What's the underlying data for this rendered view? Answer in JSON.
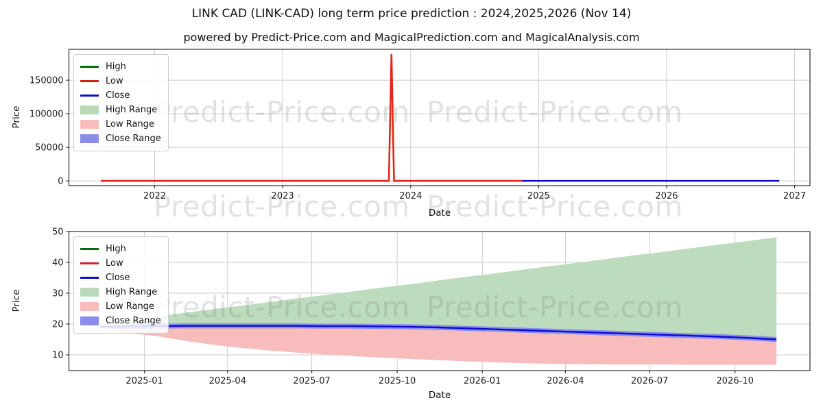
{
  "title": "LINK CAD (LINK-CAD) long term price prediction : 2024,2025,2026 (Nov 14)",
  "subtitle": "powered by Predict-Price.com and MagicalPrediction.com and MagicalAnalysis.com",
  "watermark": {
    "text": "Predict-Price.com"
  },
  "axes_labels": {
    "price": "Price",
    "date": "Date"
  },
  "colors": {
    "high_line": "#0a6b0a",
    "low_line": "#e42618",
    "close_line": "#0b0bd0",
    "high_range_fill": "#bddbbd",
    "low_range_fill": "#f9bcbc",
    "close_range_fill": "#8a8deb",
    "grid": "#cbcbcb",
    "spine": "#2b2b2b"
  },
  "legend_items": [
    {
      "label": "High",
      "type": "line",
      "color": "#0a6b0a"
    },
    {
      "label": "Low",
      "type": "line",
      "color": "#cc2222"
    },
    {
      "label": "Close",
      "type": "line",
      "color": "#0b0bd0"
    },
    {
      "label": "High Range",
      "type": "patch",
      "color": "#b9d9b9"
    },
    {
      "label": "Low Range",
      "type": "patch",
      "color": "#f9bcbc"
    },
    {
      "label": "Close Range",
      "type": "patch",
      "color": "#8a8deb"
    }
  ],
  "chart_data": [
    {
      "id": "history-chart",
      "type": "line",
      "title": "LINK-CAD price history and long term prediction",
      "xlabel": "Date",
      "ylabel": "Price",
      "x_unit": "year",
      "xlim": [
        2021.33,
        2027.12
      ],
      "ylim": [
        -7000,
        196000
      ],
      "grid": true,
      "legend_position": "upper left",
      "xticks": [
        {
          "v": 2022,
          "label": "2022"
        },
        {
          "v": 2023,
          "label": "2023"
        },
        {
          "v": 2024,
          "label": "2024"
        },
        {
          "v": 2025,
          "label": "2025"
        },
        {
          "v": 2026,
          "label": "2026"
        },
        {
          "v": 2027,
          "label": "2027"
        }
      ],
      "yticks": [
        {
          "v": 0,
          "label": "0"
        },
        {
          "v": 50000,
          "label": "50000"
        },
        {
          "v": 100000,
          "label": "100000"
        },
        {
          "v": 150000,
          "label": "150000"
        }
      ],
      "series": [
        {
          "name": "Low",
          "color": "#e42618",
          "width": 2.6,
          "note": "historical low price, flat near 0 at this scale, anomalous spike ~188000 near Nov 2023",
          "points": [
            [
              2021.58,
              28
            ],
            [
              2021.8,
              30
            ],
            [
              2022.0,
              22
            ],
            [
              2022.3,
              13
            ],
            [
              2022.6,
              8
            ],
            [
              2023.0,
              7
            ],
            [
              2023.4,
              8
            ],
            [
              2023.83,
              14
            ],
            [
              2023.85,
              188000
            ],
            [
              2023.87,
              14
            ],
            [
              2024.1,
              18
            ],
            [
              2024.4,
              20
            ],
            [
              2024.6,
              15
            ],
            [
              2024.87,
              19
            ]
          ]
        },
        {
          "name": "Close",
          "color": "#0b0bd0",
          "width": 2.4,
          "note": "predicted close Nov 2024 - Nov 2026, flat near 0 at this scale",
          "points": [
            [
              2024.87,
              19
            ],
            [
              2025.2,
              19.3
            ],
            [
              2025.6,
              19.3
            ],
            [
              2025.9,
              18.9
            ],
            [
              2026.2,
              17.8
            ],
            [
              2026.5,
              16.8
            ],
            [
              2026.88,
              15
            ]
          ]
        }
      ]
    },
    {
      "id": "prediction-chart",
      "type": "area",
      "title": "LINK-CAD two year prediction detail",
      "xlabel": "Date",
      "ylabel": "Price",
      "x_unit": "months since 2024-11-14",
      "xlim": [
        -1.1,
        25.2
      ],
      "ylim": [
        4.9,
        50
      ],
      "grid": true,
      "legend_position": "upper left",
      "xticks": [
        {
          "v": 1.58,
          "label": "2025-01"
        },
        {
          "v": 4.53,
          "label": "2025-04"
        },
        {
          "v": 7.52,
          "label": "2025-07"
        },
        {
          "v": 10.55,
          "label": "2025-10"
        },
        {
          "v": 13.57,
          "label": "2026-01"
        },
        {
          "v": 16.52,
          "label": "2026-04"
        },
        {
          "v": 19.51,
          "label": "2026-07"
        },
        {
          "v": 22.54,
          "label": "2026-10"
        }
      ],
      "yticks": [
        {
          "v": 10,
          "label": "10"
        },
        {
          "v": 20,
          "label": "20"
        },
        {
          "v": 30,
          "label": "30"
        },
        {
          "v": 40,
          "label": "40"
        },
        {
          "v": 50,
          "label": "50"
        }
      ],
      "x": [
        0,
        1,
        2,
        3,
        4,
        5,
        6,
        7,
        8,
        9,
        10,
        11,
        12,
        13,
        14,
        15,
        16,
        17,
        18,
        19,
        20,
        21,
        22,
        23,
        24
      ],
      "bands": [
        {
          "name": "High Range",
          "color": "#bddbbd",
          "upper": [
            20.0,
            21.2,
            22.3,
            23.5,
            24.7,
            25.8,
            27.0,
            28.2,
            29.3,
            30.5,
            31.7,
            32.8,
            34.0,
            35.2,
            36.3,
            37.5,
            38.7,
            39.8,
            41.0,
            42.2,
            43.3,
            44.5,
            45.7,
            46.8,
            48.0
          ],
          "lower": [
            19.0,
            19.2,
            19.3,
            19.4,
            19.4,
            19.4,
            19.4,
            19.4,
            19.3,
            19.3,
            19.2,
            19.1,
            18.9,
            18.6,
            18.3,
            18.0,
            17.7,
            17.4,
            17.1,
            16.8,
            16.5,
            16.2,
            15.9,
            15.5,
            15.0
          ]
        },
        {
          "name": "Low Range",
          "color": "#f9bcbc",
          "upper": [
            19.0,
            19.2,
            19.3,
            19.4,
            19.4,
            19.4,
            19.4,
            19.4,
            19.3,
            19.3,
            19.2,
            19.1,
            18.9,
            18.6,
            18.3,
            18.0,
            17.7,
            17.4,
            17.1,
            16.8,
            16.5,
            16.2,
            15.9,
            15.5,
            15.0
          ],
          "lower": [
            19.0,
            17.2,
            16.2,
            14.7,
            13.4,
            12.4,
            11.5,
            10.8,
            10.2,
            9.7,
            9.2,
            8.8,
            8.4,
            8.0,
            7.7,
            7.4,
            7.2,
            7.1,
            7.0,
            7.0,
            7.0,
            6.9,
            6.9,
            6.9,
            6.9
          ]
        },
        {
          "name": "Close Range",
          "color": "#8a8deb",
          "upper": [
            19.1,
            19.9,
            20.0,
            20.1,
            20.1,
            20.1,
            20.1,
            20.1,
            20.0,
            20.0,
            19.9,
            19.8,
            19.6,
            19.3,
            19.0,
            18.7,
            18.4,
            18.1,
            17.8,
            17.5,
            17.2,
            16.9,
            16.6,
            16.2,
            15.7
          ],
          "lower": [
            18.9,
            18.5,
            18.6,
            18.7,
            18.7,
            18.7,
            18.7,
            18.7,
            18.6,
            18.6,
            18.5,
            18.4,
            18.2,
            17.9,
            17.6,
            17.3,
            17.0,
            16.7,
            16.4,
            16.1,
            15.8,
            15.5,
            15.2,
            14.8,
            14.3
          ]
        }
      ],
      "series": [
        {
          "name": "Close",
          "color": "#0b0bd0",
          "width": 2.4,
          "y": [
            19.0,
            19.2,
            19.3,
            19.4,
            19.4,
            19.4,
            19.4,
            19.4,
            19.3,
            19.3,
            19.2,
            19.1,
            18.9,
            18.6,
            18.3,
            18.0,
            17.7,
            17.4,
            17.1,
            16.8,
            16.5,
            16.2,
            15.9,
            15.5,
            15.0
          ]
        }
      ]
    }
  ]
}
